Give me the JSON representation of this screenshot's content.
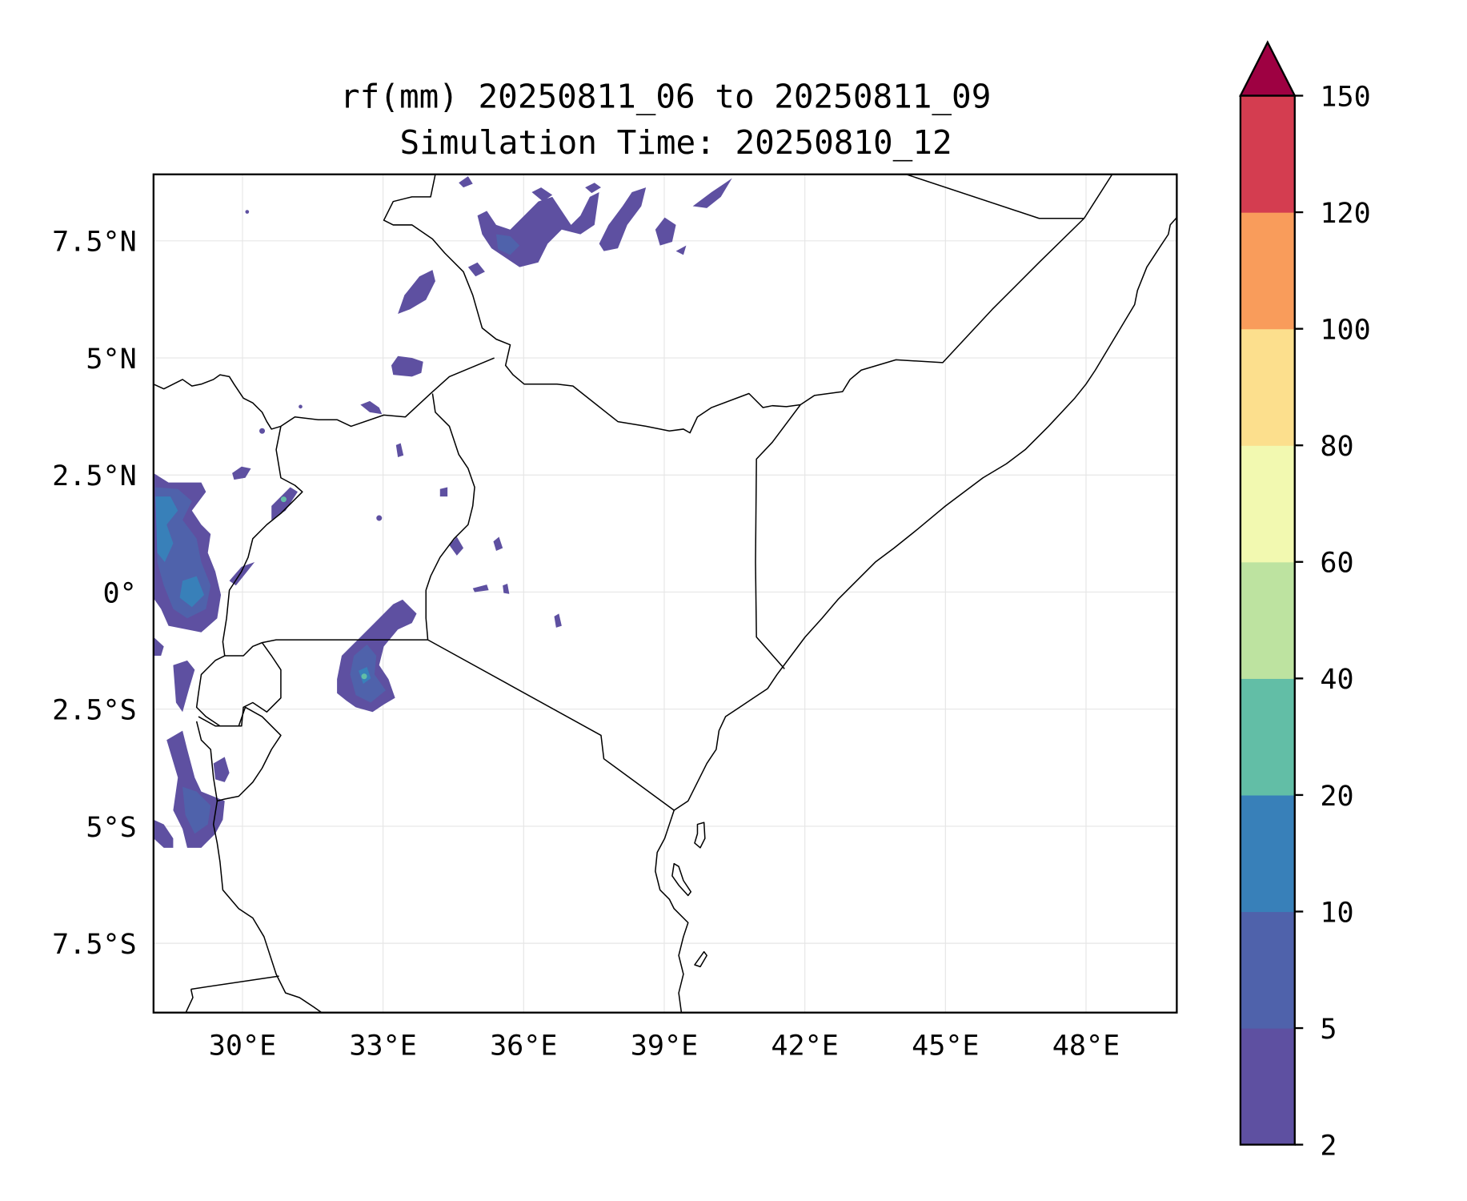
{
  "title": {
    "line1": "rf(mm) 20250811_06 to 20250811_09",
    "line2": "Simulation Time: 20250810_12"
  },
  "chart_data": {
    "type": "heatmap",
    "variable": "rf(mm)",
    "extent": {
      "lon": [
        28.1,
        50.0
      ],
      "lat": [
        -9.0,
        8.9
      ]
    },
    "grid": true,
    "x_ticks": [
      {
        "value": 30,
        "label": "30°E"
      },
      {
        "value": 33,
        "label": "33°E"
      },
      {
        "value": 36,
        "label": "36°E"
      },
      {
        "value": 39,
        "label": "39°E"
      },
      {
        "value": 42,
        "label": "42°E"
      },
      {
        "value": 45,
        "label": "45°E"
      },
      {
        "value": 48,
        "label": "48°E"
      }
    ],
    "y_ticks": [
      {
        "value": 7.5,
        "label": "7.5°N"
      },
      {
        "value": 5,
        "label": "5°N"
      },
      {
        "value": 2.5,
        "label": "2.5°N"
      },
      {
        "value": 0,
        "label": "0°"
      },
      {
        "value": -2.5,
        "label": "2.5°S"
      },
      {
        "value": -5,
        "label": "5°S"
      },
      {
        "value": -7.5,
        "label": "7.5°S"
      }
    ],
    "colorbar": {
      "levels": [
        2,
        5,
        10,
        20,
        40,
        60,
        80,
        100,
        120,
        150
      ],
      "labels": [
        "2",
        "5",
        "10",
        "20",
        "40",
        "60",
        "80",
        "100",
        "120",
        "150"
      ],
      "colors": [
        "#5e50a1",
        "#4f62ab",
        "#3880b9",
        "#62bea6",
        "#bde3a0",
        "#f2f9b0",
        "#fcdf8d",
        "#f99c5b",
        "#d43d50"
      ],
      "extend_max_color": "#9e0142",
      "extend": "max",
      "placement": "right"
    }
  }
}
